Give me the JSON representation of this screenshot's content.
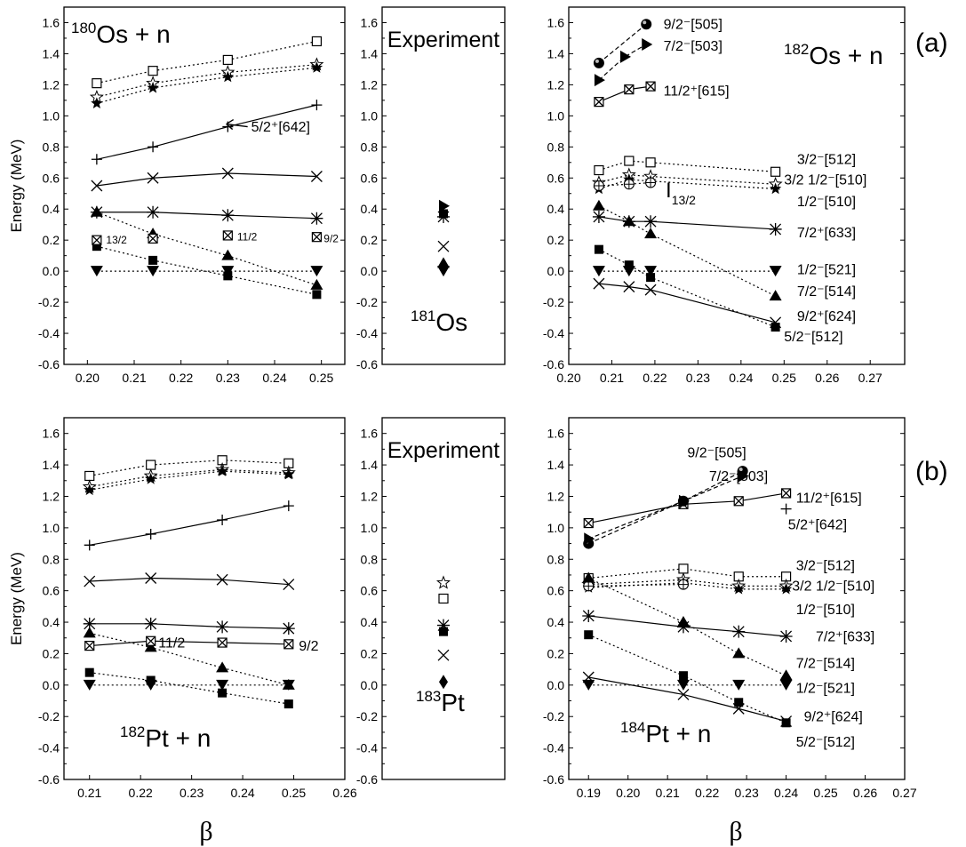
{
  "figure": {
    "row_a_label": "(a)",
    "row_b_label": "(b)",
    "xlabel_left": "β",
    "xlabel_right": "β"
  },
  "chart_data": [
    {
      "id": "a-left",
      "type": "line",
      "panel": "(a) left",
      "nucleus_mass": "180",
      "nucleus_sym": "Os + n",
      "xlabel": "",
      "ylabel": "Energy (MeV)",
      "xlim": [
        0.195,
        0.255
      ],
      "ylim": [
        -0.6,
        1.7
      ],
      "xticks": [
        "0.20",
        "0.21",
        "0.22",
        "0.23",
        "0.24",
        "0.25"
      ],
      "yticks": [
        "-0.6",
        "-0.4",
        "-0.2",
        "0.0",
        "0.2",
        "0.4",
        "0.6",
        "0.8",
        "1.0",
        "1.2",
        "1.4",
        "1.6"
      ],
      "x": [
        0.202,
        0.214,
        0.23,
        0.249
      ],
      "series": [
        {
          "marker": "sqopen",
          "style": "dot",
          "values": [
            1.21,
            1.29,
            1.36,
            1.48
          ]
        },
        {
          "marker": "staropen",
          "style": "dot",
          "values": [
            1.12,
            1.21,
            1.28,
            1.33
          ]
        },
        {
          "marker": "star",
          "style": "dot",
          "values": [
            1.08,
            1.18,
            1.25,
            1.31
          ]
        },
        {
          "marker": "plus",
          "style": "solid",
          "values": [
            0.72,
            0.8,
            0.93,
            1.07
          ]
        },
        {
          "marker": "x",
          "style": "solid",
          "values": [
            0.55,
            0.6,
            0.63,
            0.61
          ]
        },
        {
          "marker": "asterisk",
          "style": "solid",
          "values": [
            0.38,
            0.38,
            0.36,
            0.34
          ]
        },
        {
          "marker": "tri",
          "style": "dot",
          "values": [
            0.38,
            0.24,
            0.1,
            -0.09
          ]
        },
        {
          "marker": "sq",
          "style": "dot",
          "values": [
            0.16,
            0.07,
            -0.03,
            -0.15
          ]
        },
        {
          "marker": "tridown",
          "style": "dot",
          "values": [
            0.0,
            0.0,
            0.0,
            0.0
          ]
        }
      ],
      "extra_points": [
        {
          "marker": "sqcross",
          "x": 0.202,
          "y": 0.2
        },
        {
          "marker": "sqcross",
          "x": 0.214,
          "y": 0.21
        },
        {
          "marker": "sqcross",
          "x": 0.23,
          "y": 0.23
        },
        {
          "marker": "sqcross",
          "x": 0.249,
          "y": 0.22
        }
      ],
      "labels": [
        {
          "text": "5/2⁺[642]",
          "x": 0.235,
          "y": 0.93,
          "arrow": true
        },
        {
          "text": "13/2",
          "x": 0.204,
          "y": 0.2,
          "small": true
        },
        {
          "text": "11/2",
          "x": 0.232,
          "y": 0.22,
          "small": true
        },
        {
          "text": "9/2",
          "x": 0.2505,
          "y": 0.21,
          "small": true
        }
      ]
    },
    {
      "id": "a-mid",
      "type": "scatter",
      "panel": "(a) experiment",
      "title": "Experiment",
      "nucleus_mass": "181",
      "nucleus_sym": "Os",
      "xlim": [
        0,
        1
      ],
      "ylim": [
        -0.6,
        1.7
      ],
      "yticks": [
        "-0.6",
        "-0.4",
        "-0.2",
        "0.0",
        "0.2",
        "0.4",
        "0.6",
        "0.8",
        "1.0",
        "1.2",
        "1.4",
        "1.6"
      ],
      "points": [
        {
          "marker": "triright",
          "x": 0.5,
          "y": 0.42
        },
        {
          "marker": "sq",
          "x": 0.5,
          "y": 0.37
        },
        {
          "marker": "asterisk",
          "x": 0.5,
          "y": 0.35
        },
        {
          "marker": "x",
          "x": 0.5,
          "y": 0.16
        },
        {
          "marker": "tri",
          "x": 0.5,
          "y": 0.05
        },
        {
          "marker": "tridown",
          "x": 0.5,
          "y": 0.0
        }
      ]
    },
    {
      "id": "a-right",
      "type": "line",
      "panel": "(a) right",
      "nucleus_mass": "182",
      "nucleus_sym": "Os + n",
      "xlim": [
        0.2,
        0.278
      ],
      "ylim": [
        -0.6,
        1.7
      ],
      "xticks": [
        "0.20",
        "0.21",
        "0.22",
        "0.23",
        "0.24",
        "0.25",
        "0.26",
        "0.27"
      ],
      "yticks": [
        "-0.6",
        "-0.4",
        "-0.2",
        "0.0",
        "0.2",
        "0.4",
        "0.6",
        "0.8",
        "1.0",
        "1.2",
        "1.4",
        "1.6"
      ],
      "series": [
        {
          "marker": "sqopen",
          "style": "dot",
          "x": [
            0.207,
            0.214,
            0.219,
            0.248
          ],
          "values": [
            0.65,
            0.71,
            0.7,
            0.64
          ]
        },
        {
          "marker": "staropen",
          "style": "dot",
          "x": [
            0.207,
            0.214,
            0.219,
            0.248
          ],
          "values": [
            0.57,
            0.62,
            0.61,
            0.56
          ]
        },
        {
          "marker": "star",
          "style": "dot",
          "x": [
            0.207,
            0.214,
            0.219,
            0.248
          ],
          "values": [
            0.53,
            0.59,
            0.58,
            0.53
          ]
        },
        {
          "marker": "circplus",
          "style": "dot",
          "x": [
            0.207,
            0.214,
            0.219
          ],
          "values": [
            0.55,
            0.56,
            0.57
          ]
        },
        {
          "marker": "asterisk",
          "style": "solid",
          "x": [
            0.207,
            0.214,
            0.219,
            0.248
          ],
          "values": [
            0.35,
            0.32,
            0.32,
            0.27
          ]
        },
        {
          "marker": "tri",
          "style": "dot",
          "x": [
            0.207,
            0.214,
            0.219,
            0.248
          ],
          "values": [
            0.42,
            0.32,
            0.24,
            -0.16
          ]
        },
        {
          "marker": "sq",
          "style": "dot",
          "x": [
            0.207,
            0.214,
            0.219,
            0.248
          ],
          "values": [
            0.14,
            0.04,
            -0.04,
            -0.36
          ]
        },
        {
          "marker": "tridown",
          "style": "dot",
          "x": [
            0.207,
            0.214,
            0.219,
            0.248
          ],
          "values": [
            0.0,
            0.0,
            0.0,
            0.0
          ]
        },
        {
          "marker": "x",
          "style": "solid",
          "x": [
            0.207,
            0.214,
            0.219,
            0.248
          ],
          "values": [
            -0.08,
            -0.1,
            -0.12,
            -0.33
          ]
        },
        {
          "marker": "sqcross",
          "style": "solid",
          "x": [
            0.207,
            0.214,
            0.219
          ],
          "values": [
            1.09,
            1.17,
            1.19
          ]
        },
        {
          "marker": "ball",
          "style": "dash",
          "x": [
            0.207,
            0.218
          ],
          "values": [
            1.34,
            1.59
          ]
        },
        {
          "marker": "triright",
          "style": "dash",
          "x": [
            0.207,
            0.213,
            0.218
          ],
          "values": [
            1.23,
            1.38,
            1.46
          ]
        }
      ],
      "labels": [
        {
          "text": "9/2⁻[505]",
          "x": 0.222,
          "y": 1.59
        },
        {
          "text": "7/2⁻[503]",
          "x": 0.222,
          "y": 1.45
        },
        {
          "text": "11/2⁺[615]",
          "x": 0.222,
          "y": 1.16
        },
        {
          "text": "3/2⁻[512]",
          "x": 0.253,
          "y": 0.72
        },
        {
          "text": "3/2 1/2⁻[510]",
          "x": 0.25,
          "y": 0.59
        },
        {
          "text": "1/2⁻[510]",
          "x": 0.253,
          "y": 0.45
        },
        {
          "text": "7/2⁺[633]",
          "x": 0.253,
          "y": 0.25
        },
        {
          "text": "1/2⁻[521]",
          "x": 0.253,
          "y": 0.01
        },
        {
          "text": "7/2⁻[514]",
          "x": 0.253,
          "y": -0.13
        },
        {
          "text": "9/2⁺[624]",
          "x": 0.253,
          "y": -0.29
        },
        {
          "text": "5/2⁻[512]",
          "x": 0.25,
          "y": -0.42
        },
        {
          "text": "I",
          "x": 0.2225,
          "y": 0.52,
          "big": true,
          "sub": "13/2"
        }
      ]
    },
    {
      "id": "b-left",
      "type": "line",
      "panel": "(b) left",
      "nucleus_mass": "182",
      "nucleus_sym": "Pt + n",
      "xlabel": "β",
      "ylabel": "Energy (MeV)",
      "xlim": [
        0.205,
        0.26
      ],
      "ylim": [
        -0.6,
        1.7
      ],
      "xticks": [
        "0.21",
        "0.22",
        "0.23",
        "0.24",
        "0.25",
        "0.26"
      ],
      "yticks": [
        "-0.6",
        "-0.4",
        "-0.2",
        "0.0",
        "0.2",
        "0.4",
        "0.6",
        "0.8",
        "1.0",
        "1.2",
        "1.4",
        "1.6"
      ],
      "x": [
        0.21,
        0.222,
        0.236,
        0.249
      ],
      "series": [
        {
          "marker": "sqopen",
          "style": "dot",
          "values": [
            1.33,
            1.4,
            1.43,
            1.41
          ]
        },
        {
          "marker": "staropen",
          "style": "dot",
          "values": [
            1.26,
            1.33,
            1.37,
            1.35
          ]
        },
        {
          "marker": "star",
          "style": "dot",
          "values": [
            1.24,
            1.31,
            1.36,
            1.34
          ]
        },
        {
          "marker": "plus",
          "style": "solid",
          "values": [
            0.89,
            0.96,
            1.05,
            1.14
          ]
        },
        {
          "marker": "x",
          "style": "solid",
          "values": [
            0.66,
            0.68,
            0.67,
            0.64
          ]
        },
        {
          "marker": "asterisk",
          "style": "solid",
          "values": [
            0.39,
            0.39,
            0.37,
            0.36
          ]
        },
        {
          "marker": "tri",
          "style": "dot",
          "values": [
            0.33,
            0.24,
            0.11,
            0.0
          ]
        },
        {
          "marker": "sqcross",
          "style": "solid",
          "values": [
            0.25,
            0.28,
            0.27,
            0.26
          ]
        },
        {
          "marker": "sq",
          "style": "dot",
          "values": [
            0.08,
            0.03,
            -0.05,
            -0.12
          ]
        },
        {
          "marker": "tridown",
          "style": "dot",
          "values": [
            0.0,
            0.0,
            0.0,
            0.0
          ]
        }
      ],
      "labels": [
        {
          "text": "11/2",
          "x": 0.2235,
          "y": 0.27
        },
        {
          "text": "9/2",
          "x": 0.251,
          "y": 0.25
        }
      ]
    },
    {
      "id": "b-mid",
      "type": "scatter",
      "panel": "(b) experiment",
      "title": "Experiment",
      "nucleus_mass": "183",
      "nucleus_sym": "Pt",
      "xlim": [
        0,
        1
      ],
      "ylim": [
        -0.6,
        1.7
      ],
      "yticks": [
        "-0.6",
        "-0.4",
        "-0.2",
        "0.0",
        "0.2",
        "0.4",
        "0.6",
        "0.8",
        "1.0",
        "1.2",
        "1.4",
        "1.6"
      ],
      "points": [
        {
          "marker": "staropen",
          "x": 0.5,
          "y": 0.65
        },
        {
          "marker": "sqopen",
          "x": 0.5,
          "y": 0.55
        },
        {
          "marker": "asterisk",
          "x": 0.5,
          "y": 0.38
        },
        {
          "marker": "sq",
          "x": 0.5,
          "y": 0.34
        },
        {
          "marker": "x",
          "x": 0.5,
          "y": 0.19
        },
        {
          "marker": "diamond",
          "x": 0.5,
          "y": 0.02
        }
      ]
    },
    {
      "id": "b-right",
      "type": "line",
      "panel": "(b) right",
      "nucleus_mass": "184",
      "nucleus_sym": "Pt + n",
      "xlabel": "β",
      "xlim": [
        0.185,
        0.27
      ],
      "ylim": [
        -0.6,
        1.7
      ],
      "xticks": [
        "0.19",
        "0.20",
        "0.21",
        "0.22",
        "0.23",
        "0.24",
        "0.25",
        "0.26",
        "0.27"
      ],
      "yticks": [
        "-0.6",
        "-0.4",
        "-0.2",
        "0.0",
        "0.2",
        "0.4",
        "0.6",
        "0.8",
        "1.0",
        "1.2",
        "1.4",
        "1.6"
      ],
      "series": [
        {
          "marker": "sqcross",
          "style": "solid",
          "x": [
            0.19,
            0.214,
            0.228,
            0.24
          ],
          "values": [
            1.03,
            1.15,
            1.17,
            1.22
          ]
        },
        {
          "marker": "ball",
          "style": "dash",
          "x": [
            0.19,
            0.214,
            0.229
          ],
          "values": [
            0.9,
            1.17,
            1.36
          ]
        },
        {
          "marker": "triright",
          "style": "dash",
          "x": [
            0.19,
            0.214,
            0.229
          ],
          "values": [
            0.93,
            1.17,
            1.33
          ]
        },
        {
          "marker": "sqopen",
          "style": "dot",
          "x": [
            0.19,
            0.214,
            0.228,
            0.24
          ],
          "values": [
            0.68,
            0.74,
            0.69,
            0.69
          ]
        },
        {
          "marker": "staropen",
          "style": "dot",
          "x": [
            0.19,
            0.214,
            0.228,
            0.24
          ],
          "values": [
            0.64,
            0.67,
            0.63,
            0.63
          ]
        },
        {
          "marker": "star",
          "style": "dot",
          "x": [
            0.19,
            0.214,
            0.228,
            0.24
          ],
          "values": [
            0.62,
            0.65,
            0.61,
            0.61
          ]
        },
        {
          "marker": "circplus",
          "style": "dot",
          "x": [
            0.19,
            0.214
          ],
          "values": [
            0.63,
            0.64
          ]
        },
        {
          "marker": "asterisk",
          "style": "solid",
          "x": [
            0.19,
            0.214,
            0.228,
            0.24
          ],
          "values": [
            0.44,
            0.37,
            0.34,
            0.31
          ]
        },
        {
          "marker": "tri",
          "style": "dot",
          "x": [
            0.19,
            0.214,
            0.228,
            0.24
          ],
          "values": [
            0.68,
            0.4,
            0.2,
            0.06
          ]
        },
        {
          "marker": "sq",
          "style": "dot",
          "x": [
            0.19,
            0.214,
            0.228,
            0.24
          ],
          "values": [
            0.32,
            0.06,
            -0.11,
            -0.24
          ]
        },
        {
          "marker": "tridown",
          "style": "dot",
          "x": [
            0.19,
            0.214,
            0.228,
            0.24
          ],
          "values": [
            0.0,
            0.0,
            0.0,
            0.0
          ]
        },
        {
          "marker": "x",
          "style": "solid",
          "x": [
            0.19,
            0.214,
            0.228,
            0.24
          ],
          "values": [
            0.05,
            -0.06,
            -0.15,
            -0.23
          ]
        }
      ],
      "extra_points": [
        {
          "marker": "plus",
          "x": 0.24,
          "y": 1.12
        },
        {
          "marker": "diamond",
          "x": 0.24,
          "y": 0.04
        }
      ],
      "labels": [
        {
          "text": "9/2⁻[505]",
          "x": 0.215,
          "y": 1.48
        },
        {
          "text": "7/2⁻[503]",
          "x": 0.2205,
          "y": 1.33
        },
        {
          "text": "11/2⁺[615]",
          "x": 0.2425,
          "y": 1.19
        },
        {
          "text": "5/2⁺[642]",
          "x": 0.2405,
          "y": 1.02
        },
        {
          "text": "3/2⁻[512]",
          "x": 0.2425,
          "y": 0.76
        },
        {
          "text": "3/2 1/2⁻[510]",
          "x": 0.2415,
          "y": 0.63
        },
        {
          "text": "1/2⁻[510]",
          "x": 0.2425,
          "y": 0.48
        },
        {
          "text": "7/2⁺[633]",
          "x": 0.2475,
          "y": 0.31
        },
        {
          "text": "7/2⁻[514]",
          "x": 0.2425,
          "y": 0.14
        },
        {
          "text": "1/2⁻[521]",
          "x": 0.2425,
          "y": -0.02
        },
        {
          "text": "9/2⁺[624]",
          "x": 0.2445,
          "y": -0.2
        },
        {
          "text": "5/2⁻[512]",
          "x": 0.2425,
          "y": -0.36
        }
      ]
    }
  ]
}
